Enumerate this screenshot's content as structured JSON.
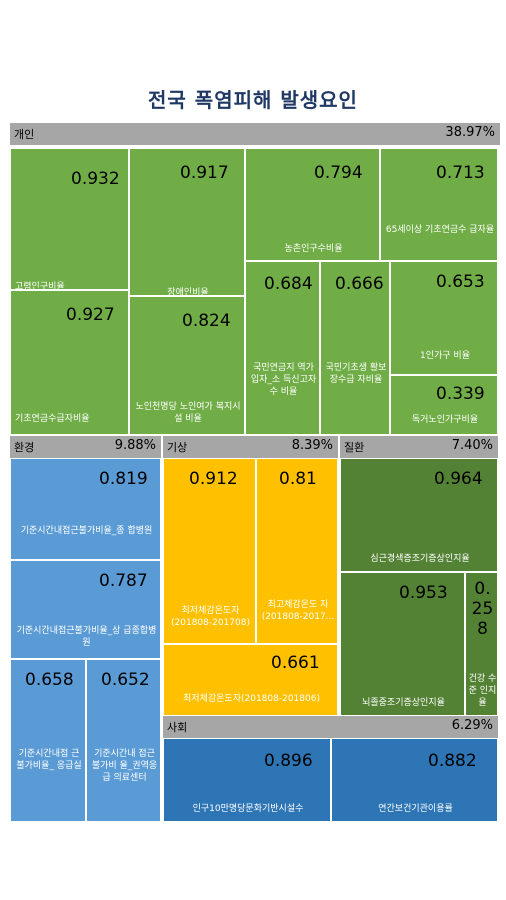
{
  "chart_data": {
    "type": "treemap",
    "title": "전국 폭염피해 발생요인",
    "groups": [
      {
        "name": "개인",
        "share": "38.97%",
        "color": "#70ad47",
        "items": [
          {
            "label": "고령인구비율",
            "value": 0.932
          },
          {
            "label": "장애인비율",
            "value": 0.917
          },
          {
            "label": "농촌인구수비율",
            "value": 0.794
          },
          {
            "label": "65세이상 기초연금수 급자율",
            "value": 0.713
          },
          {
            "label": "기초연금수급자비율",
            "value": 0.927
          },
          {
            "label": "노인천명당 노인여가 복지시설 비율",
            "value": 0.824
          },
          {
            "label": "국민연금지 역가입자_소 득신고자수 비율",
            "value": 0.684
          },
          {
            "label": "국민기초생 활보장수급 자비율",
            "value": 0.666
          },
          {
            "label": "1인가구 비율",
            "value": 0.653
          },
          {
            "label": "독거노인가구비율",
            "value": 0.339
          }
        ]
      },
      {
        "name": "환경",
        "share": "9.88%",
        "color": "#5b9bd5",
        "items": [
          {
            "label": "기준시간내접근불가비율_종 합병원",
            "value": 0.819
          },
          {
            "label": "기준시간내접근불가비율_상 급종합병원",
            "value": 0.787
          },
          {
            "label": "기준시간내접 근불가비율_ 응급실",
            "value": 0.658
          },
          {
            "label": "기준시간내 접근불가비 율_권역응급 의료센터",
            "value": 0.652
          }
        ]
      },
      {
        "name": "기상",
        "share": "8.39%",
        "color": "#ffc000",
        "items": [
          {
            "label": "최저체감온도자 (201808-201708)",
            "value": 0.912
          },
          {
            "label": "최고체감온도 자 (201808-2017...",
            "value": 0.81
          },
          {
            "label": "최저체감온도자(201808-201806)",
            "value": 0.661
          }
        ]
      },
      {
        "name": "질환",
        "share": "7.40%",
        "color": "#548235",
        "items": [
          {
            "label": "심근경색증조기증상인지율",
            "value": 0.964
          },
          {
            "label": "뇌졸중조기증상인지율",
            "value": 0.953
          },
          {
            "label": "건강 수준 인지 율",
            "value": "0.258"
          }
        ]
      },
      {
        "name": "사회",
        "share": "6.29%",
        "color": "#2e75b6",
        "items": [
          {
            "label": "인구10만명당문화기반시설수",
            "value": 0.896
          },
          {
            "label": "연간보건기관이용률",
            "value": 0.882
          }
        ]
      }
    ]
  }
}
